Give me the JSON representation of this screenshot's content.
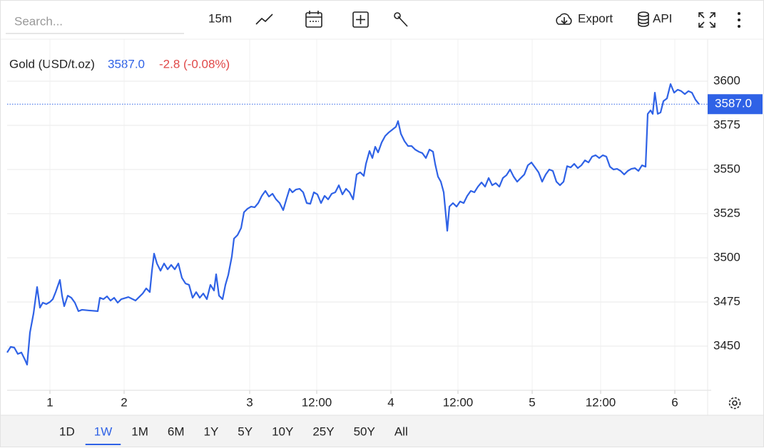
{
  "toolbar": {
    "search": "Search...",
    "interval": "15m",
    "export": "Export",
    "api": "API"
  },
  "legend": {
    "price": "3587.0",
    "change": "-2.8 (-0.08%)"
  },
  "chart_data": {
    "type": "line",
    "x": [
      0,
      2.5,
      5,
      7.5,
      10,
      12.5,
      14,
      16,
      18.5,
      21,
      23,
      25,
      27.5,
      30,
      32,
      34,
      37,
      38.5,
      40,
      42.5,
      45,
      47.5,
      50,
      52.5,
      57.5,
      63.5,
      65,
      67.5,
      70,
      72.5,
      75,
      77.5,
      80,
      85,
      90,
      92.5,
      95,
      97.5,
      100,
      101.5,
      103,
      105,
      107.5,
      110,
      112.5,
      115,
      117.5,
      120,
      122.5,
      125,
      127.5,
      130,
      132.5,
      135,
      137.5,
      140,
      142.5,
      145,
      146.5,
      148.5,
      151,
      153,
      155,
      157.5,
      159,
      161.5,
      164,
      166,
      168.5,
      171,
      173.5,
      176,
      178.5,
      181,
      183.5,
      186,
      188.5,
      191,
      193.5,
      196,
      198,
      200,
      202.5,
      205,
      207.5,
      210,
      212.5,
      215,
      217.5,
      220,
      222.5,
      225,
      227.5,
      230,
      232.5,
      235,
      237.5,
      240,
      242.5,
      245,
      247.5,
      250,
      251.5,
      254,
      256,
      258,
      260,
      262.5,
      265,
      267.5,
      270,
      272.5,
      274,
      276,
      278.5,
      281,
      283.5,
      286,
      288.5,
      291,
      293.5,
      296,
      298.5,
      300,
      302,
      304,
      306,
      307.5,
      308.5,
      310,
      312.5,
      315,
      317.5,
      320,
      322.5,
      325,
      327.5,
      330,
      332.5,
      335,
      337.5,
      340,
      342.5,
      345,
      347.5,
      350,
      352.5,
      355,
      357.5,
      360,
      362.5,
      365,
      367.5,
      370,
      372.5,
      375,
      377.5,
      380,
      382.5,
      385,
      387.5,
      390,
      392.5,
      395,
      397.5,
      400,
      402.5,
      405,
      407.5,
      410,
      412.5,
      415,
      417.5,
      420,
      422.5,
      425,
      427.5,
      430,
      432.5,
      435,
      437.5,
      440,
      442.5,
      445,
      447.5,
      449,
      451,
      452.5,
      454,
      456,
      458,
      460,
      462.5,
      465,
      467.5,
      470,
      472.5,
      475,
      477.5,
      480,
      482.5,
      485
    ],
    "series": [
      {
        "name": "Gold (USD/t.oz)",
        "color": "#2f62e6",
        "values": [
          3446.4,
          3449.6,
          3449.2,
          3445.6,
          3446.4,
          3442.3,
          3439.5,
          3457.7,
          3468.5,
          3483.5,
          3471.8,
          3474.6,
          3473.8,
          3475,
          3476.6,
          3480.6,
          3487.5,
          3478.6,
          3472.6,
          3478.6,
          3477.4,
          3474.6,
          3469.8,
          3470.6,
          3470.2,
          3469.8,
          3477.4,
          3476.6,
          3478.2,
          3475.8,
          3477.4,
          3474.6,
          3476.6,
          3477.8,
          3475.8,
          3477.8,
          3479.8,
          3482.7,
          3480.6,
          3492.7,
          3502.4,
          3496.8,
          3492.7,
          3496.8,
          3493.5,
          3496,
          3493.5,
          3496.8,
          3488.7,
          3485.5,
          3484.7,
          3477.4,
          3480.6,
          3477.4,
          3479.8,
          3476.6,
          3484.7,
          3481.5,
          3490.7,
          3478.6,
          3476.6,
          3484.7,
          3490.3,
          3500.8,
          3510.9,
          3512.9,
          3516.9,
          3525.8,
          3527.8,
          3529,
          3528.6,
          3531,
          3535.1,
          3537.9,
          3534.7,
          3536.3,
          3533.1,
          3531,
          3527,
          3533.9,
          3539.1,
          3537.1,
          3538.7,
          3539.1,
          3537.1,
          3531,
          3530.6,
          3537.1,
          3535.9,
          3531,
          3535.1,
          3533.1,
          3536.3,
          3537.1,
          3541.1,
          3535.9,
          3539.1,
          3537.1,
          3533.1,
          3547.2,
          3548.4,
          3546.4,
          3553.2,
          3560.5,
          3556.5,
          3562.9,
          3559.7,
          3565.3,
          3569,
          3571,
          3572.6,
          3574.2,
          3577.4,
          3570.2,
          3566.1,
          3563.3,
          3563.3,
          3561.3,
          3560.1,
          3559.3,
          3556.5,
          3561.3,
          3560.1,
          3553.2,
          3546,
          3543.1,
          3537.1,
          3524.2,
          3515.3,
          3529,
          3531,
          3529,
          3531.9,
          3531,
          3535.1,
          3537.9,
          3537.1,
          3540.3,
          3542.7,
          3540.3,
          3545.2,
          3541.1,
          3542.3,
          3540.3,
          3545.2,
          3546.8,
          3550,
          3546,
          3543.1,
          3545.2,
          3547.2,
          3552.4,
          3554,
          3551.2,
          3548.4,
          3543.1,
          3547.2,
          3550,
          3549.2,
          3543.1,
          3541.1,
          3543.1,
          3551.9,
          3551.2,
          3553.2,
          3550.8,
          3552.4,
          3555.2,
          3554,
          3557.3,
          3558.1,
          3556.5,
          3558.1,
          3557.3,
          3551.6,
          3550,
          3550.4,
          3549.2,
          3547.2,
          3549.2,
          3550.4,
          3550.8,
          3549.2,
          3552.4,
          3551.6,
          3581.5,
          3583.5,
          3581.5,
          3593.5,
          3581.5,
          3582.3,
          3588.7,
          3590.3,
          3598.4,
          3593.5,
          3595.2,
          3594.4,
          3592.7,
          3594.4,
          3593.5,
          3589.5,
          3587
        ]
      }
    ],
    "xlim": [
      0,
      491
    ],
    "xticks": [
      {
        "value": 30,
        "label": "1"
      },
      {
        "value": 82,
        "label": "2"
      },
      {
        "value": 170,
        "label": "3"
      },
      {
        "value": 217,
        "label": "12:00"
      },
      {
        "value": 269,
        "label": "4"
      },
      {
        "value": 316,
        "label": "12:00"
      },
      {
        "value": 368,
        "label": "5"
      },
      {
        "value": 416,
        "label": "12:00"
      },
      {
        "value": 468,
        "label": "6"
      }
    ],
    "ylim": [
      3425,
      3623.8
    ],
    "yticks": [
      3450,
      3475,
      3500,
      3525,
      3550,
      3575,
      3600
    ],
    "grid": true
  },
  "ranges": {
    "items": [
      "1D",
      "1W",
      "1M",
      "6M",
      "1Y",
      "5Y",
      "10Y",
      "25Y",
      "50Y",
      "All"
    ],
    "selected": "1W"
  }
}
